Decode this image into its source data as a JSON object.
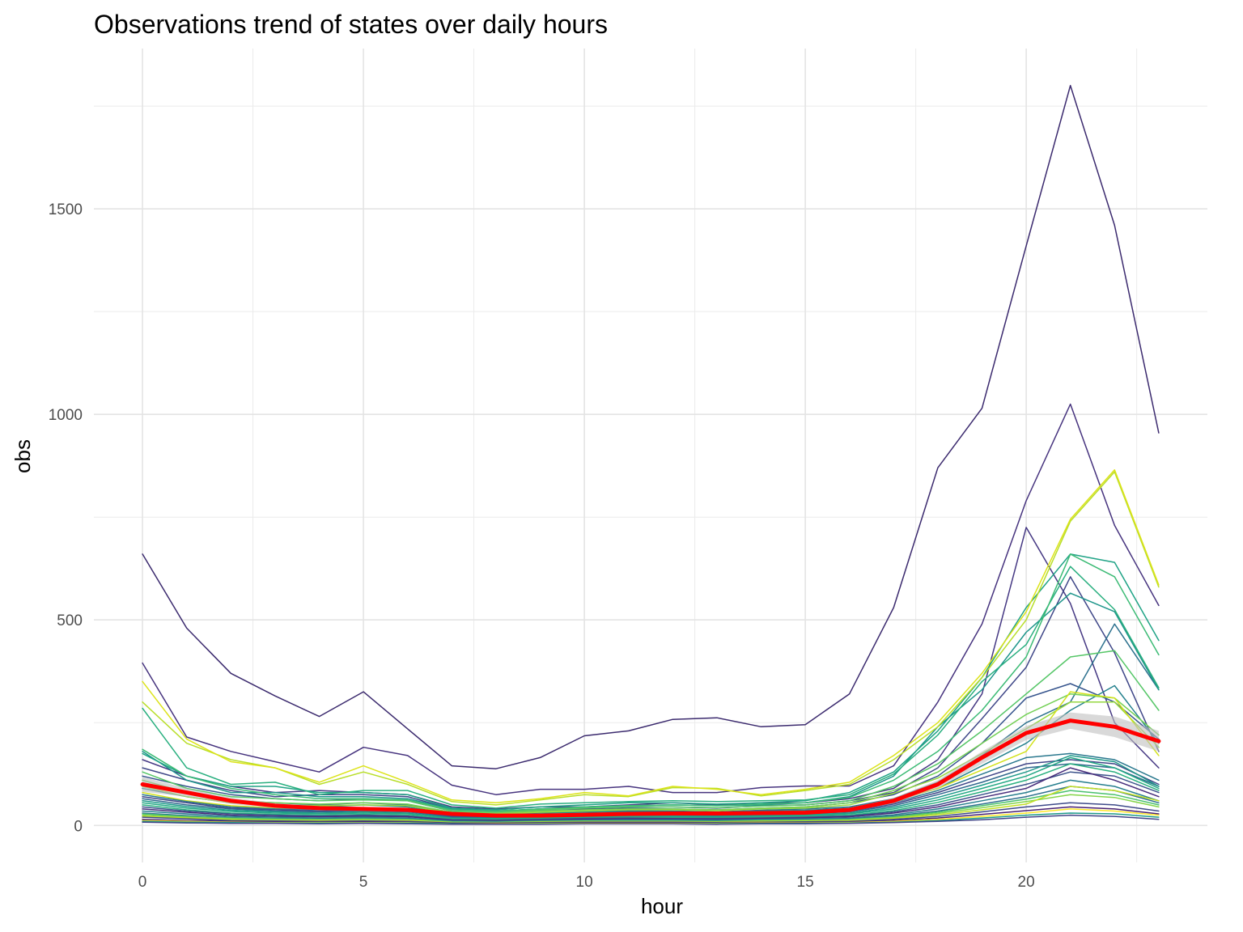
{
  "chart_data": {
    "type": "line",
    "title": "Observations trend of states over daily hours",
    "xlabel": "hour",
    "ylabel": "obs",
    "xlim": [
      -1.1,
      24.1
    ],
    "ylim": [
      -90,
      1890
    ],
    "x_ticks": [
      0,
      5,
      10,
      15,
      20
    ],
    "y_ticks": [
      0,
      500,
      1000,
      1500
    ],
    "grid": true,
    "legend": "none",
    "x": [
      0,
      1,
      2,
      3,
      4,
      5,
      6,
      7,
      8,
      9,
      10,
      11,
      12,
      13,
      14,
      15,
      16,
      17,
      18,
      19,
      20,
      21,
      22,
      23
    ],
    "series": [
      {
        "color": "#3b2a6e",
        "values": [
          660,
          480,
          370,
          315,
          265,
          325,
          235,
          145,
          138,
          165,
          218,
          230,
          258,
          262,
          240,
          245,
          320,
          530,
          870,
          1015,
          1410,
          1800,
          1460,
          955
        ]
      },
      {
        "color": "#46337e",
        "values": [
          395,
          215,
          180,
          155,
          130,
          190,
          170,
          98,
          75,
          88,
          88,
          95,
          80,
          80,
          92,
          96,
          96,
          145,
          300,
          490,
          790,
          1025,
          730,
          535
        ]
      },
      {
        "color": "#453883",
        "values": [
          160,
          120,
          95,
          80,
          85,
          80,
          75,
          45,
          40,
          45,
          45,
          50,
          55,
          50,
          55,
          55,
          65,
          90,
          160,
          320,
          725,
          540,
          250,
          140
        ]
      },
      {
        "color": "#3f4788",
        "values": [
          140,
          110,
          85,
          70,
          75,
          75,
          70,
          40,
          35,
          40,
          40,
          45,
          45,
          42,
          48,
          50,
          60,
          80,
          140,
          260,
          385,
          605,
          420,
          180
        ]
      },
      {
        "color": "#36548d",
        "values": [
          120,
          95,
          75,
          65,
          60,
          65,
          60,
          35,
          32,
          36,
          38,
          42,
          40,
          38,
          42,
          45,
          55,
          75,
          120,
          200,
          310,
          345,
          300,
          210
        ]
      },
      {
        "color": "#2d718e",
        "values": [
          100,
          80,
          60,
          55,
          50,
          55,
          50,
          30,
          28,
          32,
          34,
          36,
          35,
          33,
          37,
          40,
          45,
          65,
          105,
          170,
          250,
          300,
          490,
          330
        ]
      },
      {
        "color": "#26828e",
        "values": [
          90,
          70,
          55,
          50,
          45,
          50,
          45,
          28,
          25,
          30,
          32,
          34,
          33,
          31,
          35,
          37,
          42,
          60,
          90,
          145,
          200,
          280,
          340,
          200
        ]
      },
      {
        "color": "#1f968b",
        "values": [
          180,
          110,
          80,
          80,
          70,
          70,
          65,
          40,
          35,
          40,
          45,
          48,
          50,
          48,
          50,
          55,
          70,
          120,
          240,
          330,
          470,
          565,
          520,
          330
        ]
      },
      {
        "color": "#20a386",
        "values": [
          175,
          120,
          95,
          95,
          80,
          80,
          75,
          42,
          38,
          45,
          50,
          55,
          55,
          52,
          55,
          60,
          80,
          130,
          230,
          360,
          530,
          660,
          640,
          450
        ]
      },
      {
        "color": "#29af7f",
        "values": [
          285,
          140,
          100,
          105,
          75,
          85,
          85,
          50,
          42,
          52,
          55,
          58,
          60,
          58,
          60,
          62,
          75,
          125,
          220,
          350,
          440,
          630,
          525,
          335
        ]
      },
      {
        "color": "#3cbb75",
        "values": [
          185,
          120,
          90,
          75,
          65,
          65,
          62,
          38,
          35,
          40,
          45,
          48,
          50,
          48,
          52,
          55,
          68,
          110,
          180,
          280,
          410,
          660,
          605,
          415
        ]
      },
      {
        "color": "#55c667",
        "values": [
          130,
          90,
          70,
          65,
          60,
          62,
          60,
          35,
          32,
          38,
          42,
          45,
          45,
          43,
          47,
          50,
          60,
          95,
          150,
          230,
          320,
          410,
          425,
          280
        ]
      },
      {
        "color": "#73d055",
        "values": [
          110,
          80,
          60,
          55,
          52,
          55,
          52,
          32,
          30,
          35,
          38,
          40,
          40,
          38,
          42,
          45,
          55,
          85,
          130,
          200,
          270,
          320,
          310,
          220
        ]
      },
      {
        "color": "#95d840",
        "values": [
          95,
          70,
          55,
          50,
          48,
          50,
          48,
          30,
          28,
          32,
          35,
          38,
          38,
          36,
          40,
          42,
          50,
          78,
          115,
          175,
          235,
          300,
          300,
          190
        ]
      },
      {
        "color": "#b8de29",
        "values": [
          300,
          200,
          160,
          140,
          100,
          130,
          100,
          58,
          50,
          62,
          75,
          70,
          92,
          90,
          72,
          85,
          100,
          160,
          240,
          360,
          500,
          740,
          860,
          580
        ]
      },
      {
        "color": "#dce319",
        "values": [
          350,
          210,
          155,
          140,
          105,
          145,
          105,
          62,
          55,
          65,
          80,
          72,
          95,
          88,
          75,
          88,
          105,
          170,
          250,
          370,
          520,
          745,
          865,
          585
        ]
      },
      {
        "color": "#d2e21b",
        "values": [
          80,
          60,
          48,
          42,
          40,
          42,
          40,
          25,
          22,
          26,
          28,
          30,
          30,
          28,
          32,
          34,
          40,
          60,
          90,
          135,
          180,
          325,
          310,
          170
        ]
      },
      {
        "color": "#2a788e",
        "values": [
          75,
          58,
          45,
          40,
          38,
          40,
          38,
          24,
          22,
          25,
          27,
          29,
          28,
          27,
          30,
          32,
          38,
          55,
          85,
          125,
          165,
          175,
          160,
          110
        ]
      },
      {
        "color": "#404688",
        "values": [
          70,
          55,
          42,
          38,
          35,
          38,
          35,
          22,
          20,
          23,
          25,
          27,
          26,
          25,
          28,
          30,
          35,
          52,
          80,
          115,
          150,
          160,
          150,
          100
        ]
      },
      {
        "color": "#31688e",
        "values": [
          65,
          50,
          40,
          35,
          33,
          35,
          33,
          20,
          18,
          22,
          24,
          25,
          25,
          24,
          26,
          28,
          33,
          48,
          75,
          105,
          140,
          150,
          140,
          95
        ]
      },
      {
        "color": "#1f9a8a",
        "values": [
          60,
          46,
          37,
          33,
          30,
          33,
          30,
          18,
          17,
          20,
          22,
          23,
          23,
          22,
          24,
          26,
          30,
          44,
          68,
          98,
          130,
          170,
          155,
          95
        ]
      },
      {
        "color": "#22a884",
        "values": [
          55,
          42,
          34,
          30,
          28,
          30,
          28,
          17,
          16,
          19,
          20,
          21,
          21,
          20,
          22,
          24,
          28,
          40,
          62,
          90,
          120,
          165,
          140,
          90
        ]
      },
      {
        "color": "#2ab07f",
        "values": [
          50,
          38,
          30,
          27,
          25,
          27,
          25,
          15,
          14,
          17,
          18,
          19,
          19,
          18,
          20,
          22,
          25,
          36,
          56,
          82,
          110,
          150,
          130,
          85
        ]
      },
      {
        "color": "#3b528b",
        "values": [
          45,
          35,
          28,
          25,
          23,
          25,
          23,
          14,
          13,
          15,
          17,
          18,
          17,
          17,
          18,
          20,
          23,
          33,
          50,
          75,
          100,
          130,
          120,
          80
        ]
      },
      {
        "color": "#472d7b",
        "values": [
          40,
          32,
          25,
          22,
          21,
          22,
          21,
          13,
          12,
          14,
          15,
          16,
          16,
          15,
          17,
          18,
          21,
          30,
          45,
          68,
          90,
          140,
          110,
          70
        ]
      },
      {
        "color": "#277f8e",
        "values": [
          35,
          28,
          22,
          20,
          18,
          20,
          18,
          11,
          10,
          12,
          13,
          14,
          14,
          13,
          15,
          16,
          18,
          26,
          40,
          60,
          80,
          110,
          95,
          60
        ]
      },
      {
        "color": "#2e6f8e",
        "values": [
          30,
          24,
          19,
          17,
          16,
          17,
          16,
          10,
          9,
          11,
          12,
          12,
          12,
          11,
          13,
          14,
          16,
          23,
          35,
          52,
          70,
          95,
          85,
          55
        ]
      },
      {
        "color": "#4ac16d",
        "values": [
          28,
          22,
          18,
          16,
          15,
          16,
          15,
          9,
          8,
          10,
          11,
          11,
          11,
          10,
          12,
          13,
          15,
          21,
          32,
          48,
          64,
          85,
          75,
          50
        ]
      },
      {
        "color": "#85d54a",
        "values": [
          25,
          20,
          16,
          14,
          13,
          14,
          13,
          8,
          7,
          9,
          10,
          10,
          10,
          9,
          11,
          12,
          13,
          19,
          29,
          43,
          58,
          75,
          68,
          45
        ]
      },
      {
        "color": "#c2df23",
        "values": [
          22,
          18,
          14,
          12,
          12,
          12,
          12,
          7,
          6,
          8,
          9,
          9,
          9,
          8,
          10,
          10,
          12,
          17,
          26,
          38,
          52,
          95,
          85,
          60
        ]
      },
      {
        "color": "#3e4a89",
        "values": [
          20,
          16,
          12,
          11,
          10,
          11,
          10,
          6,
          6,
          7,
          8,
          8,
          8,
          7,
          8,
          9,
          10,
          15,
          22,
          33,
          45,
          55,
          50,
          35
        ]
      },
      {
        "color": "#482173",
        "values": [
          15,
          12,
          10,
          9,
          8,
          9,
          8,
          5,
          5,
          6,
          6,
          6,
          6,
          6,
          7,
          7,
          8,
          12,
          18,
          27,
          36,
          45,
          40,
          28
        ]
      },
      {
        "color": "#fde725",
        "values": [
          12,
          10,
          8,
          7,
          7,
          7,
          7,
          4,
          4,
          5,
          5,
          5,
          5,
          5,
          6,
          6,
          7,
          10,
          15,
          22,
          30,
          40,
          35,
          25
        ]
      },
      {
        "color": "#1e9b8a",
        "values": [
          10,
          8,
          7,
          6,
          6,
          6,
          6,
          4,
          3,
          4,
          4,
          4,
          4,
          4,
          5,
          5,
          6,
          8,
          12,
          18,
          25,
          30,
          28,
          20
        ]
      },
      {
        "color": "#414487",
        "values": [
          8,
          6,
          5,
          5,
          4,
          5,
          4,
          3,
          3,
          3,
          4,
          4,
          4,
          3,
          4,
          4,
          5,
          7,
          10,
          14,
          20,
          25,
          22,
          15
        ]
      }
    ],
    "smooth": {
      "color": "#ff0000",
      "band_color": "#bfbfbf",
      "values": [
        100,
        80,
        60,
        48,
        42,
        40,
        38,
        28,
        24,
        24,
        26,
        28,
        29,
        29,
        30,
        31,
        38,
        60,
        100,
        165,
        225,
        255,
        240,
        205
      ],
      "band_lower": [
        82,
        70,
        52,
        42,
        37,
        35,
        33,
        24,
        21,
        21,
        23,
        25,
        26,
        26,
        27,
        28,
        34,
        53,
        90,
        150,
        208,
        235,
        215,
        180
      ],
      "band_upper": [
        118,
        90,
        68,
        54,
        47,
        45,
        43,
        32,
        27,
        27,
        29,
        31,
        32,
        32,
        33,
        34,
        42,
        67,
        110,
        180,
        242,
        275,
        265,
        230
      ]
    }
  }
}
